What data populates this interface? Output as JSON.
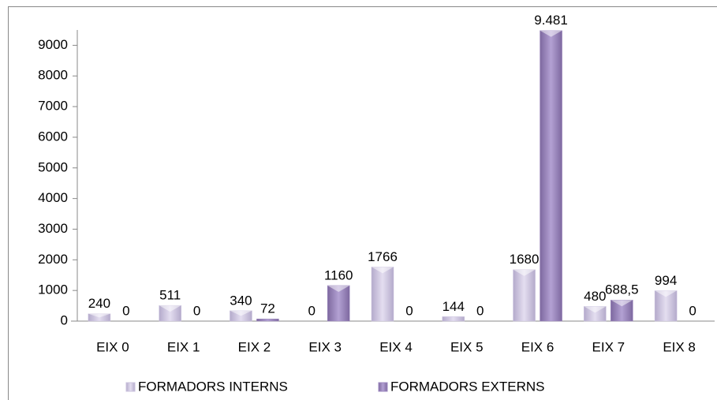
{
  "chart_data": {
    "type": "bar",
    "categories": [
      "EIX 0",
      "EIX 1",
      "EIX 2",
      "EIX 3",
      "EIX 4",
      "EIX 5",
      "EIX 6",
      "EIX 7",
      "EIX 8"
    ],
    "series": [
      {
        "name": "FORMADORS INTERNS",
        "color": "#cbc3de",
        "values": [
          240,
          511,
          340,
          0,
          1766,
          144,
          1680,
          480,
          994
        ]
      },
      {
        "name": "FORMADORS EXTERNS",
        "color": "#9d88c0",
        "values": [
          0,
          0,
          72,
          1160,
          0,
          0,
          9481,
          688.5,
          0
        ],
        "value_labels": [
          "0",
          "0",
          "72",
          "1160",
          "0",
          "0",
          "9.481",
          "688,5",
          "0"
        ]
      }
    ],
    "ylim": [
      0,
      9500
    ],
    "yticks": [
      0,
      1000,
      2000,
      3000,
      4000,
      5000,
      6000,
      7000,
      8000,
      9000
    ],
    "grid": false,
    "legend": "bottom"
  }
}
